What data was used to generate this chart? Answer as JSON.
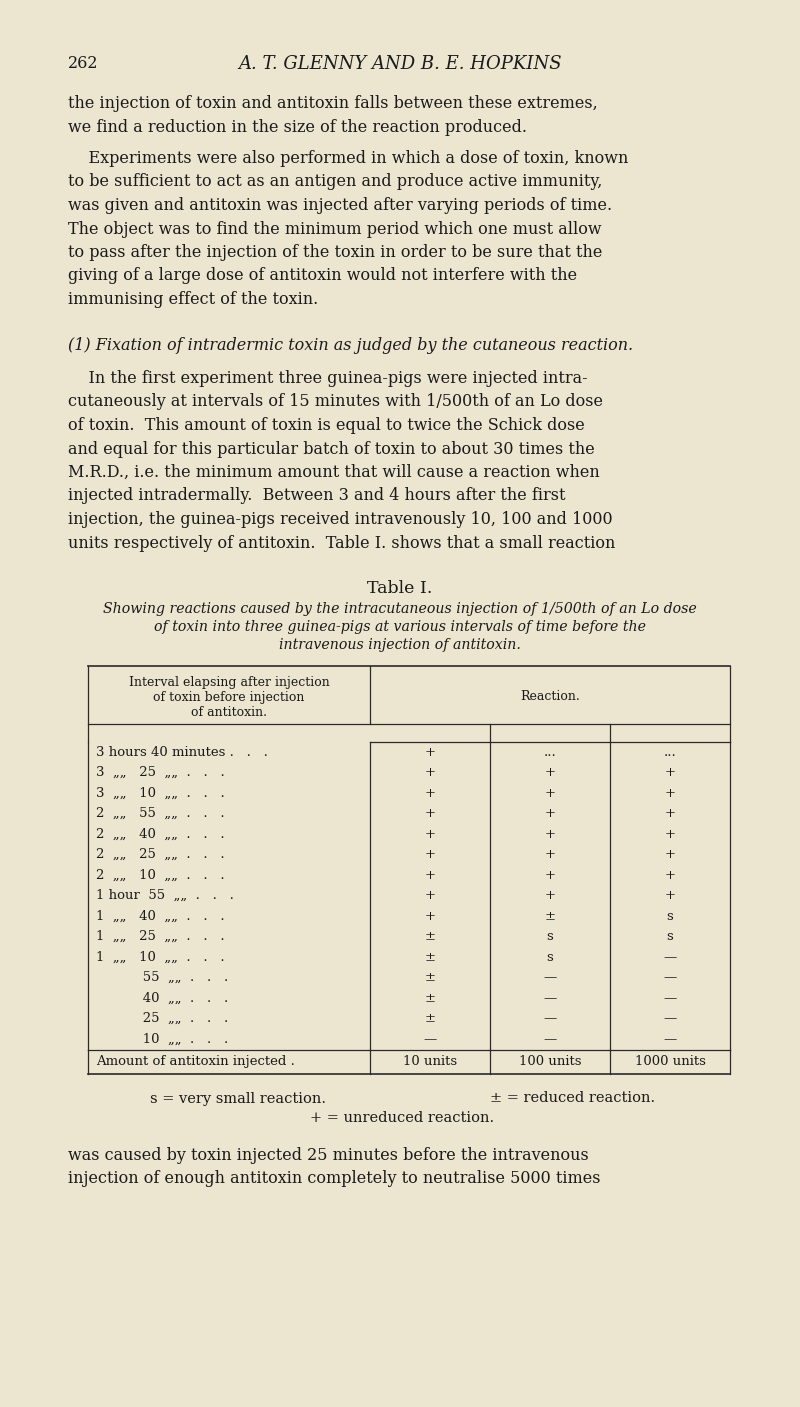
{
  "bg_color": "#ece5d0",
  "text_color": "#1a1a1a",
  "page_number": "262",
  "header": "A. T. GLENNY AND B. E. HOPKINS",
  "para1_lines": [
    "the injection of toxin and antitoxin falls between these extremes,",
    "we find a reduction in the size of the reaction produced."
  ],
  "para2_lines": [
    "    Experiments were also performed in which a dose of toxin, known",
    "to be sufficient to act as an antigen and produce active immunity,",
    "was given and antitoxin was injected after varying periods of time.",
    "The object was to find the minimum period which one must allow",
    "to pass after the injection of the toxin in order to be sure that the",
    "giving of a large dose of antitoxin would not interfere with the",
    "immunising effect of the toxin."
  ],
  "section_heading": "(1) Fixation of intradermic toxin as judged by the cutaneous reaction.",
  "para3_lines": [
    "    In the first experiment three guinea-pigs were injected intra-",
    "cutaneously at intervals of 15 minutes with 1/500th of an Lo dose",
    "of toxin.  This amount of toxin is equal to twice the Schick dose",
    "and equal for this particular batch of toxin to about 30 times the",
    "M.R.D., i.e. the minimum amount that will cause a reaction when",
    "injected intradermally.  Between 3 and 4 hours after the first",
    "injection, the guinea-pigs received intravenously 10, 100 and 1000",
    "units respectively of antitoxin.  Table I. shows that a small reaction"
  ],
  "table_title": "Table I.",
  "table_caption_lines": [
    "Showing reactions caused by the intracutaneous injection of 1/500th of an Lo dose",
    "of toxin into three guinea-pigs at various intervals of time before the",
    "intravenous injection of antitoxin."
  ],
  "col_header1_lines": [
    "Interval elapsing after injection",
    "of toxin before injection",
    "of antitoxin."
  ],
  "col_header2": "Reaction.",
  "interval_texts": [
    "3 hours 40 minutes .   .   .",
    "3  „„   25  „„  .   .   .",
    "3  „„   10  „„  .   .   .",
    "2  „„   55  „„  .   .   .",
    "2  „„   40  „„  .   .   .",
    "2  „„   25  „„  .   .   .",
    "2  „„   10  „„  .   .   .",
    "1 hour  55  „„  .   .   .",
    "1  „„   40  „„  .   .   .",
    "1  „„   25  „„  .   .   .",
    "1  „„   10  „„  .   .   .",
    "           55  „„  .   .   .",
    "           40  „„  .   .   .",
    "           25  „„  .   .   .",
    "           10  „„  .   .   ."
  ],
  "reaction_col1": [
    "+",
    "+",
    "+",
    "+",
    "+",
    "+",
    "+",
    "+",
    "+",
    "±",
    "±",
    "±",
    "±",
    "±",
    "—"
  ],
  "reaction_col2": [
    "...",
    "+",
    "+",
    "+",
    "+",
    "+",
    "+",
    "+",
    "±",
    "s",
    "s",
    "—",
    "—",
    "—",
    "—"
  ],
  "reaction_col3": [
    "...",
    "+",
    "+",
    "+",
    "+",
    "+",
    "+",
    "+",
    "s",
    "s",
    "—",
    "—",
    "—",
    "—",
    "—"
  ],
  "table_footer_label": "Amount of antitoxin injected .",
  "table_footer_cols": [
    "10 units",
    "100 units",
    "1000 units"
  ],
  "legend1": "s = very small reaction.",
  "legend2": "± = reduced reaction.",
  "legend3": "+ = unreduced reaction.",
  "para4_lines": [
    "was caused by toxin injected 25 minutes before the intravenous",
    "injection of enough antitoxin completely to neutralise 5000 times"
  ]
}
